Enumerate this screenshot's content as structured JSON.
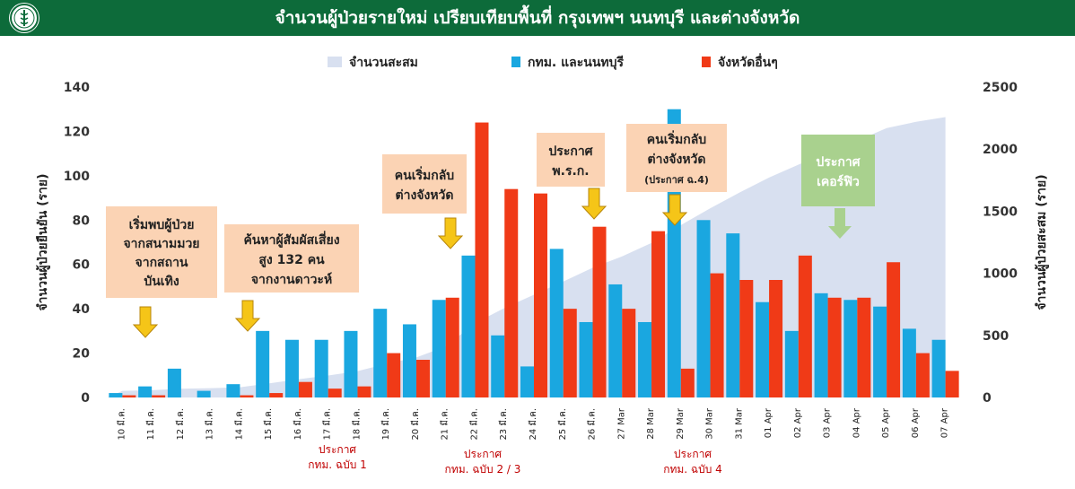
{
  "header": {
    "title": "จำนวนผู้ป่วยรายใหม่ เปรียบเทียบพื้นที่ กรุงเทพฯ นนทบุรี และต่างจังหวัด",
    "logo_icon": "ministry-of-public-health-emblem"
  },
  "colors": {
    "header_bg": "#0d6b3a",
    "bkk": "#1aa7e0",
    "province": "#f03a17",
    "cumulative": "#d8e0f0",
    "callout_orange": "#fbd3b4",
    "callout_green": "#a9d18e",
    "arrow": "#f5c518",
    "annotation_text": "#c00000"
  },
  "chart_data": {
    "type": "bar",
    "categories": [
      "10 มี.ค.",
      "11 มี.ค.",
      "12 มี.ค.",
      "13 มี.ค.",
      "14 มี.ค.",
      "15 มี.ค.",
      "16 มี.ค.",
      "17 มี.ค.",
      "18 มี.ค.",
      "19 มี.ค.",
      "20 มี.ค.",
      "21 มี.ค.",
      "22 มี.ค.",
      "23 มี.ค.",
      "24 มี.ค.",
      "25 มี.ค.",
      "26 มี.ค.",
      "27 Mar",
      "28 Mar",
      "29 Mar",
      "30 Mar",
      "31 Mar",
      "01 Apr",
      "02 Apr",
      "03 Apr",
      "04 Apr",
      "05 Apr",
      "06 Apr",
      "07 Apr"
    ],
    "series": [
      {
        "name": "กทม. และนนทบุรี",
        "type": "bar",
        "axis": "left",
        "values": [
          2,
          5,
          13,
          3,
          6,
          30,
          26,
          26,
          30,
          40,
          33,
          44,
          64,
          28,
          14,
          67,
          34,
          51,
          34,
          130,
          80,
          74,
          43,
          30,
          47,
          44,
          41,
          31,
          26
        ]
      },
      {
        "name": "จังหวัดอื่นๆ",
        "type": "bar",
        "axis": "left",
        "values": [
          1,
          1,
          0,
          0,
          1,
          2,
          7,
          4,
          5,
          20,
          17,
          45,
          124,
          94,
          92,
          40,
          77,
          40,
          75,
          13,
          56,
          53,
          53,
          64,
          45,
          45,
          61,
          20,
          12
        ]
      },
      {
        "name": "จำนวนสะสม",
        "type": "area",
        "axis": "right",
        "values": [
          53,
          59,
          70,
          75,
          82,
          114,
          147,
          177,
          212,
          272,
          322,
          411,
          599,
          721,
          827,
          934,
          1045,
          1136,
          1245,
          1388,
          1524,
          1651,
          1771,
          1875,
          1978,
          2067,
          2169,
          2220,
          2258
        ]
      }
    ],
    "y_left": {
      "label": "จำนวนผู้ป่วยยืนยัน (ราย)",
      "min": 0,
      "max": 140,
      "ticks": [
        0,
        20,
        40,
        60,
        80,
        100,
        120,
        140
      ]
    },
    "y_right": {
      "label": "จำนวนผู้ป่วยสะสม (ราย)",
      "min": 0,
      "max": 2500,
      "ticks": [
        0,
        500,
        1000,
        1500,
        2000,
        2500
      ]
    },
    "legend_position": "top-center",
    "grid": false,
    "callouts": [
      {
        "lines": [
          "เริ่มพบผู้ป่วย",
          "จากสนามมวย",
          "จากสถาน",
          "บันเทิง"
        ],
        "style": "orange",
        "arrow": true
      },
      {
        "lines": [
          "ค้นหาผู้สัมผัสเสี่ยง",
          "สูง 132 คน",
          "จากงานดาวะห์"
        ],
        "style": "orange",
        "arrow": true
      },
      {
        "lines": [
          "คนเริ่มกลับ",
          "ต่างจังหวัด"
        ],
        "style": "orange",
        "arrow": true
      },
      {
        "lines": [
          "ประกาศ",
          "พ.ร.ก."
        ],
        "style": "orange",
        "arrow": true
      },
      {
        "lines": [
          "คนเริ่มกลับ",
          "ต่างจังหวัด",
          "(ประกาศ ฉ.4)"
        ],
        "style": "orange",
        "arrow": true
      },
      {
        "lines": [
          "ประกาศ",
          "เคอร์ฟิว"
        ],
        "style": "green",
        "arrow": true
      }
    ],
    "bottom_annotations": [
      {
        "lines": [
          "ประกาศ",
          "กทม. ฉบับ 1"
        ]
      },
      {
        "lines": [
          "ประกาศ",
          "กทม. ฉบับ 2 / 3"
        ]
      },
      {
        "lines": [
          "ประกาศ",
          "กทม. ฉบับ 4"
        ]
      }
    ]
  }
}
